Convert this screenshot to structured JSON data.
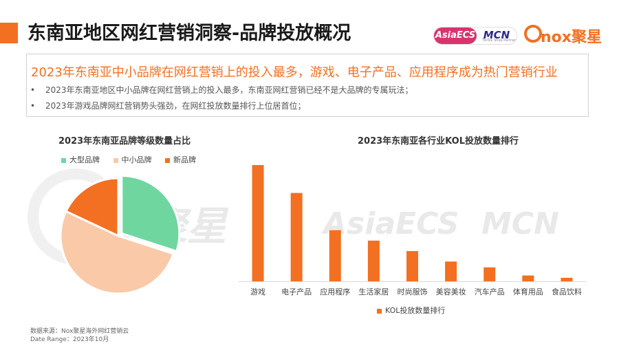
{
  "page": {
    "title": "东南亚地区网红营销洞察-品牌投放概况",
    "headline": "2023年东南亚中小品牌在网红营销上的投入最多，游戏、电子产品、应用程序成为热门营销行业",
    "bullets": [
      "2023年东南亚地区中小品牌在网红营销上的投入最多，东南亚网红营销已经不是大品牌的专属玩法；",
      "2023年游戏品牌网红营销势头强劲，在网红投放数量排行上位居首位；"
    ],
    "bullet_marker": "•"
  },
  "logos": {
    "asia_main": "AsiaECS",
    "asia_mcn": "MCN",
    "asia_sub": "TikTok Shop Partner",
    "nox_text": "nox聚星"
  },
  "watermark": {
    "nox": "nox聚星",
    "asia": "AsiaECS",
    "mcn": "MCN"
  },
  "footer": {
    "source": "数据来源：Nox聚星海外网红营销云",
    "range": "Date Range：2023年10月"
  },
  "colors": {
    "accent": "#f36f21",
    "pie_large": "#6fd6a0",
    "pie_sme": "#f9c9a8",
    "pie_new": "#f36f21",
    "bar": "#f36f21"
  },
  "chart_data": [
    {
      "type": "pie",
      "title": "2023年东南亚品牌等级数量占比",
      "legend_position": "top",
      "slices": [
        {
          "name": "大型品牌",
          "value": 30
        },
        {
          "name": "中小品牌",
          "value": 52
        },
        {
          "name": "新品牌",
          "value": 18
        }
      ]
    },
    {
      "type": "bar",
      "title": "2023年东南亚各行业KOL投放数量排行",
      "legend_position": "bottom",
      "categories": [
        "游戏",
        "电子产品",
        "应用程序",
        "生活家居",
        "时尚服饰",
        "美容美妆",
        "汽车产品",
        "体育用品",
        "食品饮料"
      ],
      "series": [
        {
          "name": "KOL投放数量排行",
          "values": [
            100,
            76,
            44,
            35,
            26,
            17,
            12,
            5,
            3
          ]
        }
      ],
      "ylim": [
        0,
        100
      ],
      "grid": false
    }
  ]
}
